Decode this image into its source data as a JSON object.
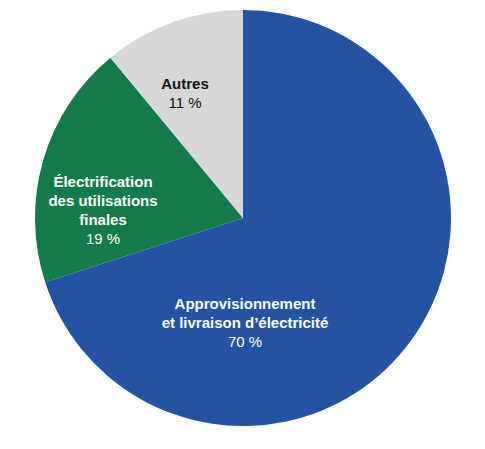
{
  "chart_data": {
    "type": "pie",
    "categories": [
      "Approvisionnement\net livraison d’électricité",
      "Électrification\ndes utilisations\nfinales",
      "Autres"
    ],
    "values": [
      70,
      19,
      11
    ],
    "value_labels": [
      "70 %",
      "19 %",
      "11 %"
    ],
    "colors": [
      "#2353a2",
      "#137a4b",
      "#d8d8d8"
    ],
    "data_labels": true
  }
}
